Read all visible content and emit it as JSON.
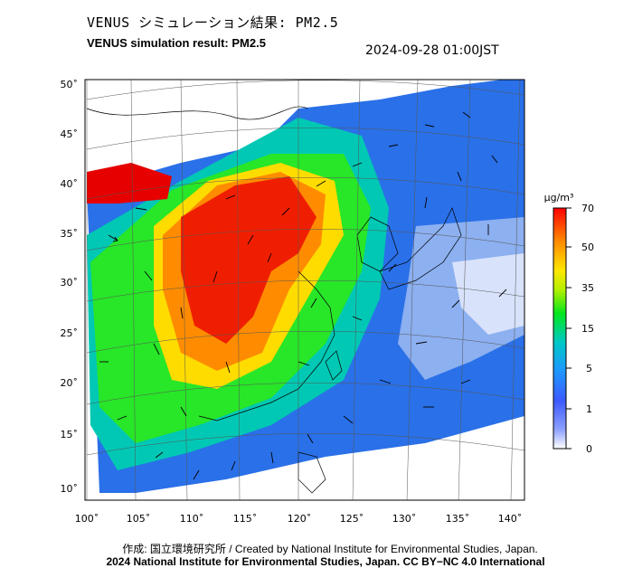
{
  "header": {
    "title_jp": "VENUS シミュレーション結果: PM2.5",
    "title_en": "VENUS simulation result: PM2.5",
    "timestamp": "2024-09-28 01:00JST"
  },
  "map": {
    "lon_ticks": [
      "100˚",
      "105˚",
      "110˚",
      "115˚",
      "120˚",
      "125˚",
      "130˚",
      "135˚",
      "140˚"
    ],
    "lat_ticks": [
      "50˚",
      "45˚",
      "40˚",
      "35˚",
      "30˚",
      "25˚",
      "20˚",
      "15˚",
      "10˚"
    ],
    "hotspot_color": "#ff0000",
    "background_color": "#ffffff"
  },
  "colorbar": {
    "unit": "μg/m³",
    "ticks": [
      "70",
      "50",
      "35",
      "15",
      "5",
      "1",
      "0"
    ],
    "colors": [
      "#ff0000",
      "#ff8c00",
      "#ffe600",
      "#00e61e",
      "#00c8a0",
      "#1e96ff",
      "#3c5aff",
      "#ffffff"
    ]
  },
  "footer": {
    "credit": "作成: 国立環境研究所 / Created by National Institute for Environmental Studies, Japan.",
    "copyright": "2024 National Institute for Environmental Studies, Japan. CC BY−NC 4.0 International"
  }
}
